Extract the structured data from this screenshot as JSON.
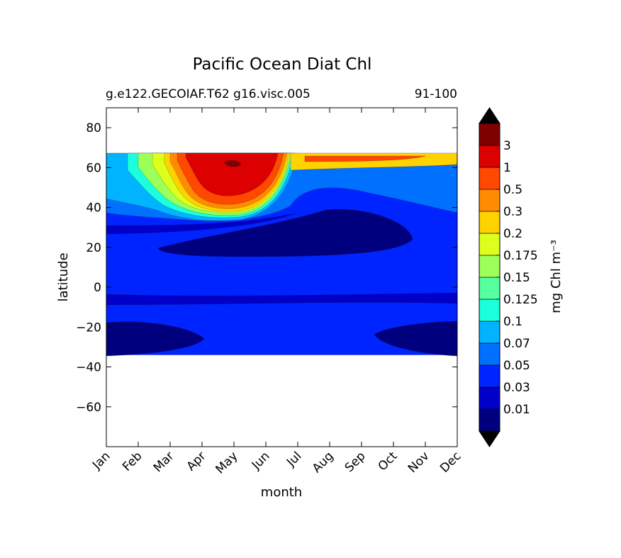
{
  "chart_data": {
    "type": "heatmap",
    "title": "Pacific Ocean Diat Chl",
    "subtitle_left": "g.e122.GECOIAF.T62 g16.visc.005",
    "subtitle_right": "91-100",
    "xlabel": "month",
    "ylabel": "latitude",
    "x_ticks": [
      "Jan",
      "Feb",
      "Mar",
      "Apr",
      "May",
      "Jun",
      "Jul",
      "Aug",
      "Sep",
      "Oct",
      "Nov",
      "Dec"
    ],
    "ylim": [
      -80,
      90
    ],
    "y_ticks": [
      80,
      60,
      40,
      20,
      0,
      -20,
      -40,
      -60
    ],
    "y_tick_labels": [
      "80",
      "60",
      "40",
      "20",
      "0",
      "−20",
      "−40",
      "−60"
    ],
    "data_lat_range": [
      -34,
      67
    ],
    "grid": false,
    "colorbar": {
      "label": "mg Chl m⁻³",
      "levels": [
        "0.01",
        "0.03",
        "0.05",
        "0.07",
        "0.1",
        "0.125",
        "0.15",
        "0.175",
        "0.2",
        "0.3",
        "0.5",
        "1",
        "3"
      ],
      "colors": [
        "#00007f",
        "#0000c8",
        "#0024ff",
        "#0070ff",
        "#00b4ff",
        "#1bffdc",
        "#56ff9f",
        "#9cff5a",
        "#dcff1b",
        "#ffd200",
        "#ff8c00",
        "#ff4800",
        "#dc0000",
        "#800000"
      ],
      "extend": "both"
    }
  }
}
